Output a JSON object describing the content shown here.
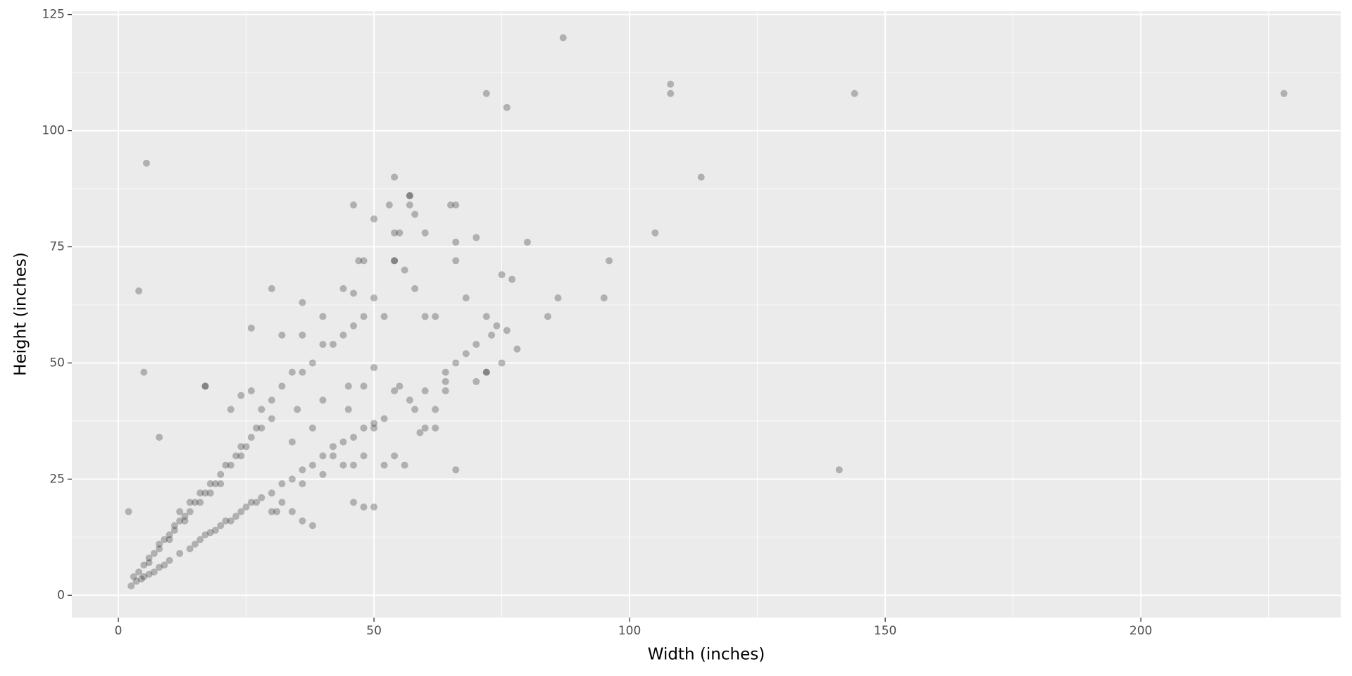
{
  "chart_data": {
    "type": "scatter",
    "x_label": "Width (inches)",
    "y_label": "Height (inches)",
    "color": "#000000",
    "alpha": 0.25,
    "grid": true,
    "xlim": [
      -9.1,
      239.1
    ],
    "ylim": [
      -4.8,
      125.7
    ],
    "xticks": [
      0,
      50,
      100,
      150,
      200
    ],
    "yticks": [
      0,
      25,
      50,
      75,
      100,
      125
    ],
    "xminor": [
      25,
      75,
      125,
      175,
      225
    ],
    "yminor": [
      12.5,
      37.5,
      62.5,
      87.5,
      112.5
    ],
    "x": [
      87,
      72,
      76,
      108,
      108,
      144,
      228,
      5.5,
      114,
      105,
      141,
      4,
      5,
      17,
      2,
      8,
      54,
      57,
      65,
      46,
      50,
      80,
      96,
      95,
      86,
      84,
      77,
      75,
      72,
      74,
      78,
      72,
      75,
      66,
      48,
      50,
      46,
      30,
      36,
      26,
      3,
      4,
      5,
      6,
      7,
      8,
      9,
      10,
      11,
      12,
      13,
      14,
      15,
      16,
      17,
      18,
      19,
      20,
      21,
      22,
      23,
      24,
      25,
      26,
      27,
      28,
      12,
      14,
      16,
      18,
      20,
      24,
      10,
      8,
      6,
      2.5,
      3.5,
      4.5,
      11,
      13,
      5,
      6,
      8,
      10,
      12,
      14,
      16,
      18,
      20,
      22,
      24,
      26,
      28,
      30,
      32,
      34,
      36,
      38,
      40,
      42,
      44,
      46,
      48,
      50,
      15,
      17,
      19,
      21,
      23,
      25,
      27,
      30,
      32,
      36,
      40,
      36,
      38,
      34,
      7,
      9,
      30,
      32,
      34,
      36,
      38,
      40,
      42,
      44,
      46,
      48,
      50,
      52,
      54,
      56,
      58,
      60,
      62,
      64,
      66,
      68,
      70,
      55,
      57,
      60,
      62,
      64,
      66,
      68,
      70,
      35,
      40,
      45,
      50,
      52,
      54,
      58,
      44,
      46,
      48,
      42,
      38,
      34,
      30,
      28,
      26,
      24,
      22,
      32,
      36,
      40,
      44,
      48,
      46,
      54,
      56,
      52,
      47,
      54,
      55,
      57,
      53,
      58,
      60,
      66,
      66,
      70,
      73,
      76,
      64,
      62,
      60,
      59,
      50,
      48,
      45,
      31,
      72,
      54,
      57,
      17
    ],
    "y": [
      120,
      108,
      105,
      110,
      108,
      108,
      108,
      93,
      90,
      78,
      27,
      65.5,
      48,
      45,
      18,
      34,
      90,
      86,
      84,
      84,
      81,
      76,
      72,
      64,
      64,
      60,
      68,
      69,
      60,
      58,
      53,
      48,
      50,
      27,
      19,
      19,
      20,
      66,
      63,
      57.5,
      4,
      5,
      6.5,
      8,
      9,
      10,
      12,
      13,
      14,
      16,
      17,
      18,
      20,
      20,
      22,
      24,
      24,
      26,
      28,
      28,
      30,
      32,
      32,
      34,
      36,
      36,
      18,
      20,
      22,
      22,
      24,
      30,
      12,
      11,
      7,
      2,
      3,
      3.5,
      15,
      16,
      4,
      4.5,
      6,
      7.5,
      9,
      10,
      12,
      13.5,
      15,
      16,
      18,
      20,
      21,
      22,
      24,
      25,
      27,
      28,
      30,
      32,
      33,
      34,
      36,
      37,
      11,
      13,
      14,
      16,
      17,
      19,
      20,
      18,
      20,
      24,
      26,
      16,
      15,
      18,
      5,
      6.5,
      42,
      45,
      48,
      48,
      50,
      54,
      54,
      56,
      58,
      60,
      64,
      60,
      72,
      70,
      66,
      60,
      60,
      48,
      72,
      64,
      77,
      45,
      42,
      44,
      40,
      46,
      50,
      52,
      54,
      40,
      42,
      40,
      36,
      38,
      44,
      40,
      28,
      28,
      30,
      30,
      36,
      33,
      38,
      40,
      44,
      43,
      40,
      56,
      56,
      60,
      66,
      72,
      65,
      30,
      28,
      28,
      72,
      78,
      78,
      84,
      84,
      82,
      78,
      84,
      76,
      46,
      56,
      57,
      44,
      36,
      36,
      35,
      49,
      45,
      45,
      18,
      48,
      72,
      86,
      45
    ]
  }
}
